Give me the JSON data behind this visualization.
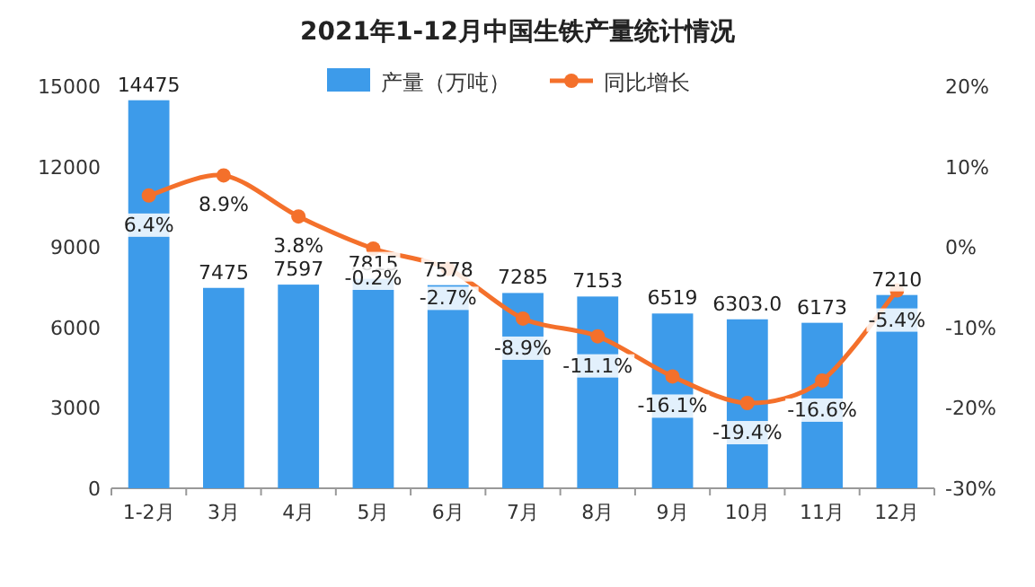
{
  "chart_data": {
    "type": "bar",
    "title": "2021年1-12月中国生铁产量统计情况",
    "categories": [
      "1-2月",
      "3月",
      "4月",
      "5月",
      "6月",
      "7月",
      "8月",
      "9月",
      "10月",
      "11月",
      "12月"
    ],
    "series": [
      {
        "name": "产量（万吨）",
        "color": "#3d9bea",
        "values": [
          14475,
          7475,
          7597,
          7815,
          7578,
          7285,
          7153,
          6519,
          6303,
          6173,
          7210
        ],
        "value_labels": [
          "14475",
          "7475",
          "7597",
          "7815",
          "7578",
          "7285",
          "7153",
          "6519",
          "6303.0",
          "6173",
          "7210"
        ]
      },
      {
        "name": "同比增长",
        "type": "line",
        "axis": "y2",
        "marker": "circle",
        "color": "#f4702b",
        "values": [
          6.4,
          8.9,
          3.8,
          -0.2,
          -2.7,
          -8.9,
          -11.1,
          -16.1,
          -19.4,
          -16.6,
          -5.4
        ],
        "value_labels": [
          "6.4%",
          "8.9%",
          "3.8%",
          "-0.2%",
          "-2.7%",
          "-8.9%",
          "-11.1%",
          "-16.1%",
          "-19.4%",
          "-16.6%",
          "-5.4%"
        ]
      }
    ],
    "ylim": [
      0,
      15000
    ],
    "yticks": [
      0,
      3000,
      6000,
      9000,
      12000,
      15000
    ],
    "y2lim": [
      -30,
      20
    ],
    "y2ticks": [
      {
        "value": -30,
        "label": "-30%"
      },
      {
        "value": -20,
        "label": "-20%"
      },
      {
        "value": -10,
        "label": "-10%"
      },
      {
        "value": 0,
        "label": "0%"
      },
      {
        "value": 10,
        "label": "10%"
      },
      {
        "value": 20,
        "label": "20%"
      }
    ],
    "legend": "top"
  }
}
